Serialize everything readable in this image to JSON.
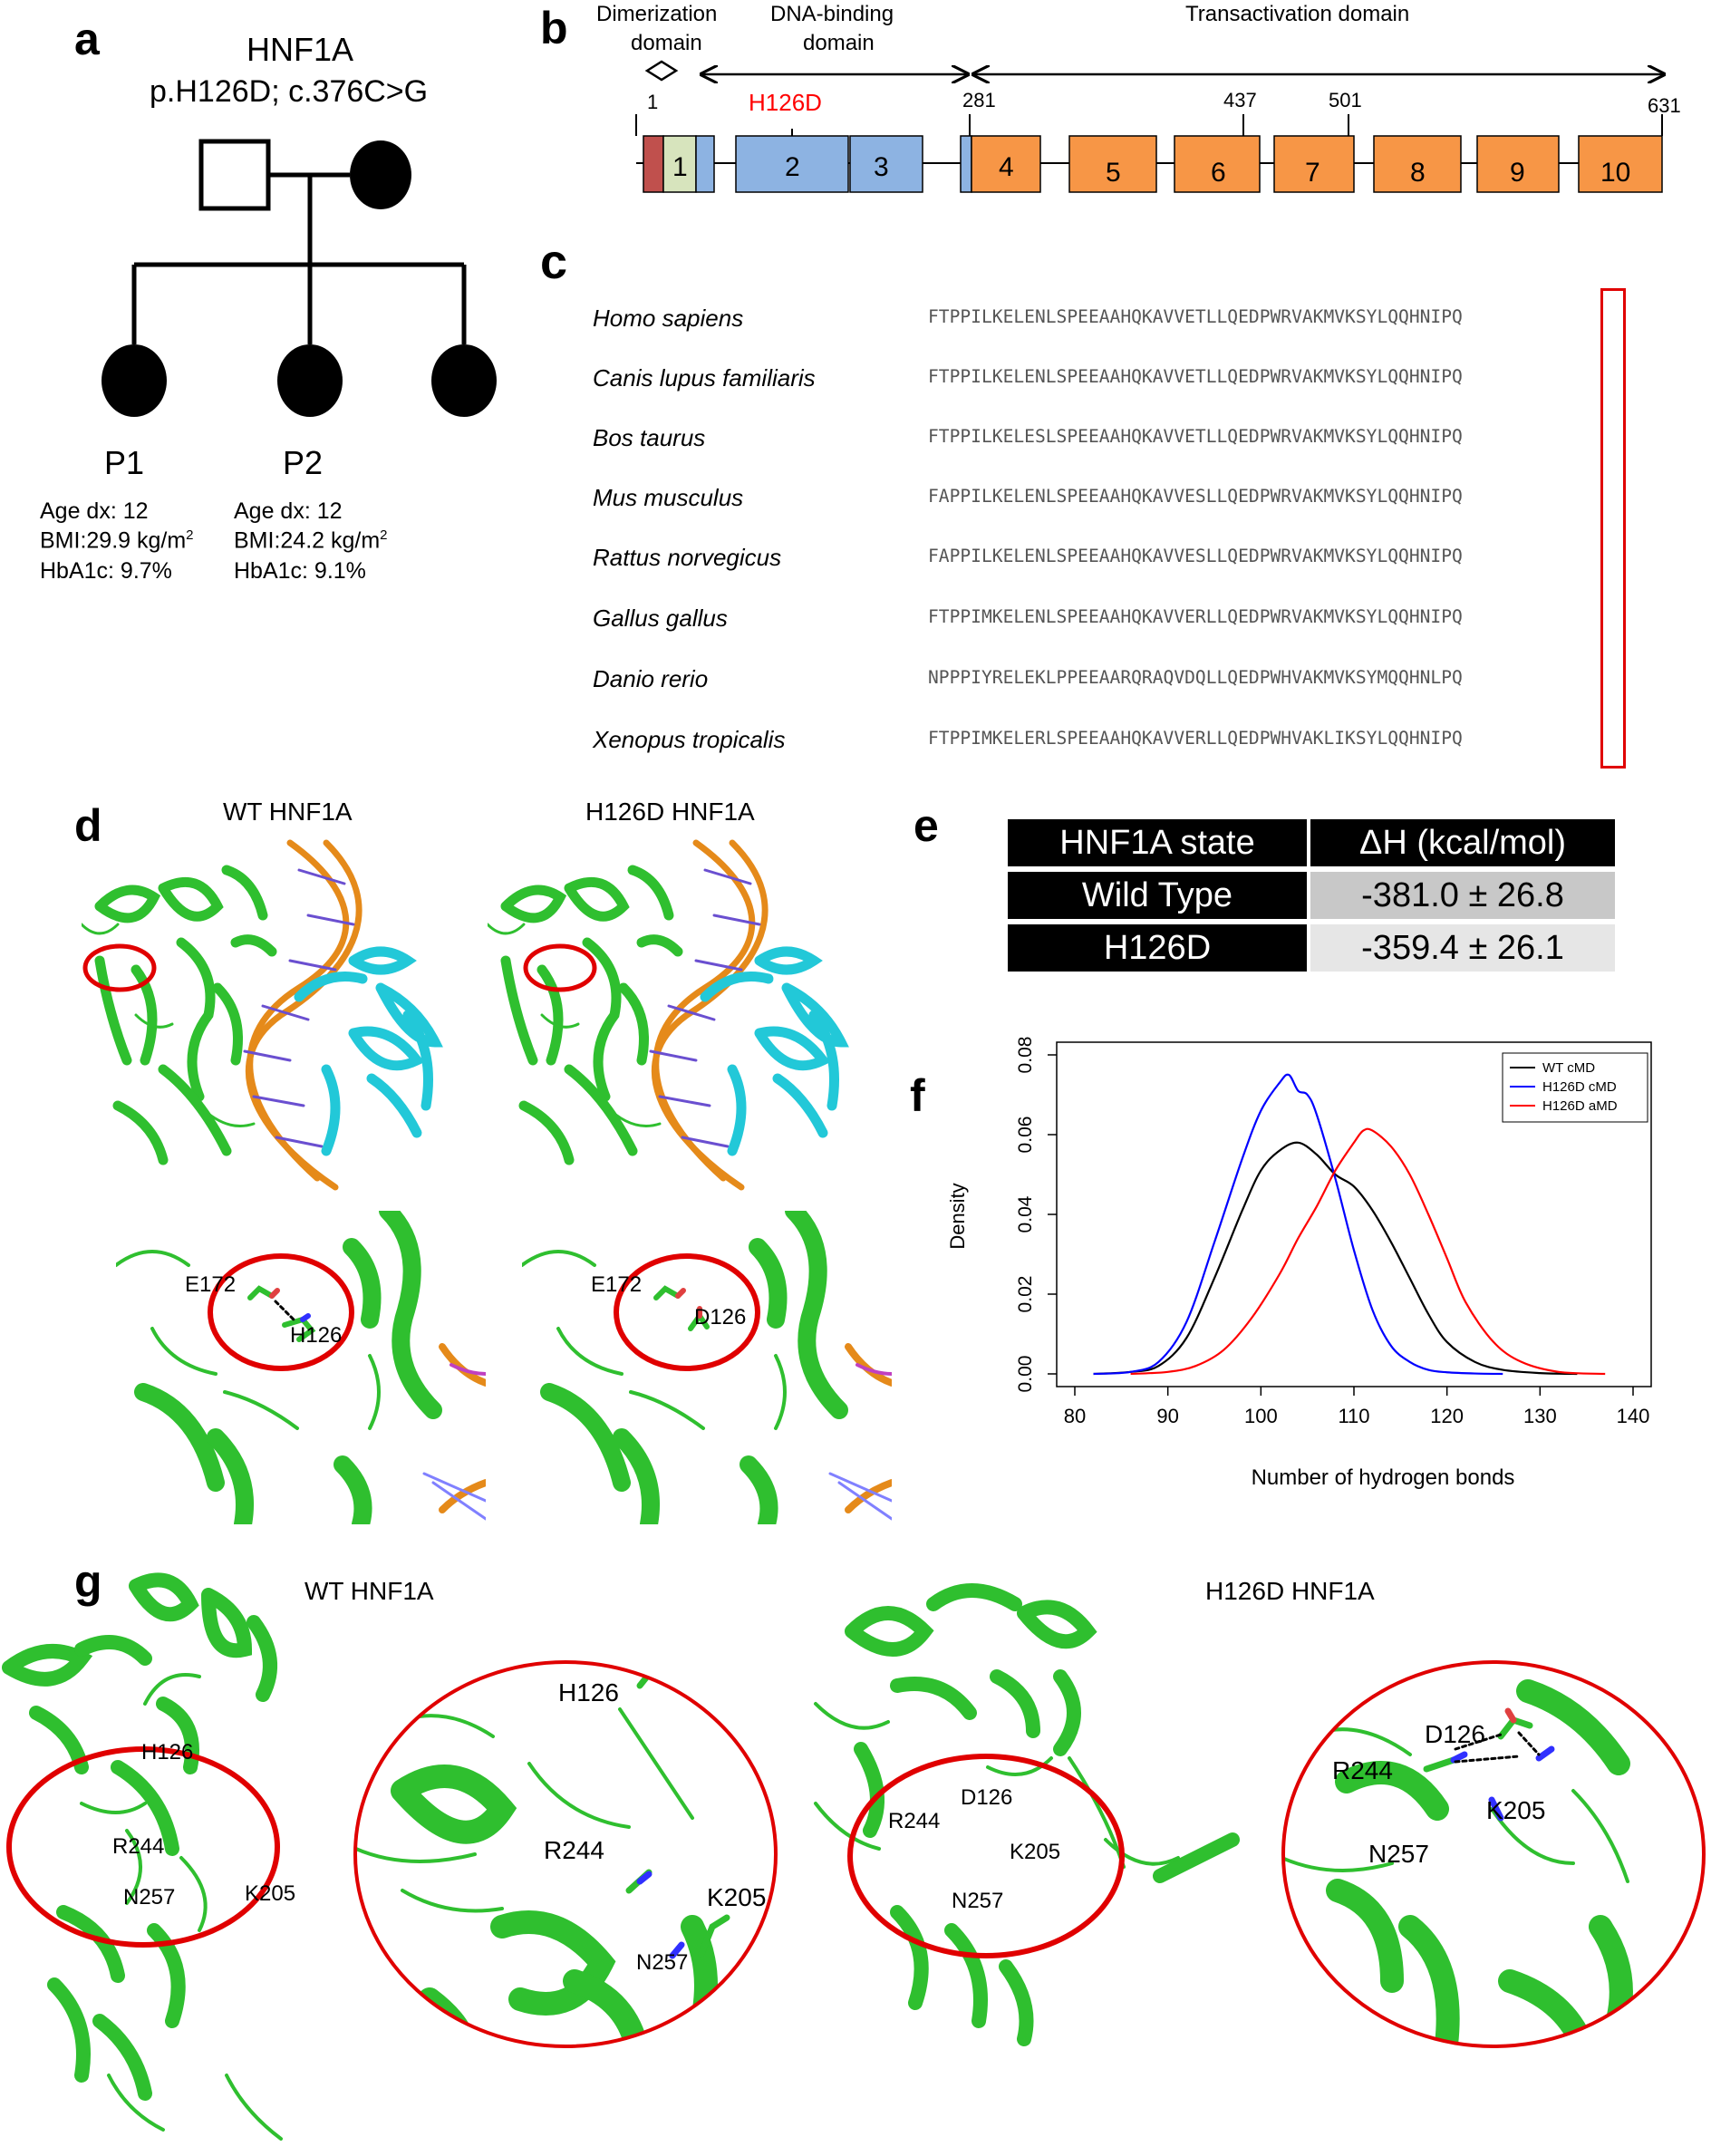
{
  "panels": {
    "a": "a",
    "b": "b",
    "c": "c",
    "d": "d",
    "e": "e",
    "f": "f",
    "g": "g"
  },
  "pedigree": {
    "gene": "HNF1A",
    "variant": "p.H126D; c.376C>G",
    "p1": {
      "label": "P1",
      "age": "Age dx: 12",
      "bmi": "BMI:29.9 kg/m",
      "bmi_sup": "2",
      "hba1c": "HbA1c: 9.7%"
    },
    "p2": {
      "label": "P2",
      "age": "Age dx: 12",
      "bmi": "BMI:24.2 kg/m",
      "bmi_sup": "2",
      "hba1c": "HbA1c: 9.1%"
    }
  },
  "domains": {
    "dimerization": "Dimerization domain",
    "dimerization_l1": "Dimerization",
    "dimerization_l2": "domain",
    "dna_binding_l1": "DNA-binding",
    "dna_binding_l2": "domain",
    "transactivation": "Transactivation domain",
    "mutation": "H126D",
    "positions": [
      "1",
      "281",
      "437",
      "501",
      "631"
    ],
    "exons": [
      "1",
      "2",
      "3",
      "4",
      "5",
      "6",
      "7",
      "8",
      "9",
      "10"
    ],
    "colors": {
      "dimer_red": "#c0504d",
      "dimer_green": "#d7e4bd",
      "dna_blue": "#8db3e2",
      "trans_orange": "#f79646",
      "mutation": "#ff0000"
    }
  },
  "alignment": {
    "rows": [
      {
        "species": "Homo sapiens",
        "seq": "FTPPILKELENLSPEEAAHQKAVVETLLQEDPWRVAKMVKSYLQQHNIPQ"
      },
      {
        "species": "Canis lupus familiaris",
        "seq": "FTPPILKELENLSPEEAAHQKAVVETLLQEDPWRVAKMVKSYLQQHNIPQ"
      },
      {
        "species": "Bos taurus",
        "seq": "FTPPILKELESLSPEEAAHQKAVVETLLQEDPWRVAKMVKSYLQQHNIPQ"
      },
      {
        "species": "Mus musculus",
        "seq": "FAPPILKELENLSPEEAAHQKAVVESLLQEDPWRVAKMVKSYLQQHNIPQ"
      },
      {
        "species": "Rattus norvegicus",
        "seq": "FAPPILKELENLSPEEAAHQKAVVESLLQEDPWRVAKMVKSYLQQHNIPQ"
      },
      {
        "species": "Gallus gallus",
        "seq": "FTPPIMKELENLSPEEAAHQKAVVERLLQEDPWRVAKMVKSYLQQHNIPQ"
      },
      {
        "species": "Danio rerio",
        "seq": "NPPPIYRELEKLPPEEAARQRAQVDQLLQEDPWHVAKMVKSYMQQHNLPQ"
      },
      {
        "species": "Xenopus tropicalis",
        "seq": "FTPPIMKELERLSPEEAAHQKAVVERLLQEDPWHVAKLIKSYLQQHNIPQ"
      }
    ]
  },
  "structures": {
    "wt_title": "WT HNF1A",
    "mut_title": "H126D HNF1A",
    "d_labels": {
      "e172": "E172",
      "h126": "H126",
      "d126": "D126"
    },
    "g_labels": {
      "h126": "H126",
      "d126": "D126",
      "r244": "R244",
      "k205": "K205",
      "n257": "N257"
    },
    "colors": {
      "protein": "#2fbf2f",
      "dna": "#e58a1a",
      "partner": "#22c8d8",
      "highlight": "#e00000"
    }
  },
  "table": {
    "headers": [
      "HNF1A state",
      "ΔH (kcal/mol)"
    ],
    "rows": [
      {
        "state": "Wild Type",
        "value": "-381.0 ± 26.8"
      },
      {
        "state": "H126D",
        "value": "-359.4 ± 26.1"
      }
    ]
  },
  "chart_data": {
    "type": "line",
    "title": "",
    "xlabel": "Number of hydrogen bonds",
    "ylabel": "Density",
    "xlim": [
      80,
      140
    ],
    "ylim": [
      0,
      0.08
    ],
    "xticks": [
      "80",
      "90",
      "100",
      "110",
      "120",
      "130",
      "140"
    ],
    "yticks": [
      "0.00",
      "0.02",
      "0.04",
      "0.06",
      "0.08"
    ],
    "legend_position": "top-right",
    "series": [
      {
        "name": "WT cMD",
        "color": "#000000",
        "x": [
          82,
          86,
          89,
          92,
          95,
          98,
          100,
          102,
          104,
          106,
          108,
          110,
          112,
          114,
          116,
          118,
          120,
          123,
          126,
          130,
          134
        ],
        "y": [
          0.0,
          0.0005,
          0.002,
          0.009,
          0.024,
          0.041,
          0.051,
          0.056,
          0.058,
          0.055,
          0.05,
          0.047,
          0.041,
          0.033,
          0.024,
          0.015,
          0.008,
          0.003,
          0.001,
          0.0002,
          0.0
        ]
      },
      {
        "name": "H126D cMD",
        "color": "#0000ff",
        "x": [
          82,
          86,
          89,
          92,
          95,
          98,
          100,
          102,
          103,
          104,
          105,
          106,
          108,
          110,
          112,
          114,
          116,
          118,
          120,
          123,
          126
        ],
        "y": [
          0.0,
          0.0005,
          0.003,
          0.013,
          0.033,
          0.054,
          0.066,
          0.073,
          0.075,
          0.071,
          0.07,
          0.065,
          0.049,
          0.031,
          0.016,
          0.007,
          0.003,
          0.001,
          0.0004,
          0.0001,
          0.0
        ]
      },
      {
        "name": "H126D aMD",
        "color": "#ff0000",
        "x": [
          86,
          90,
          93,
          96,
          99,
          102,
          104,
          106,
          108,
          110,
          111,
          112,
          114,
          116,
          118,
          120,
          122,
          125,
          128,
          132,
          137
        ],
        "y": [
          0.0,
          0.0005,
          0.002,
          0.006,
          0.014,
          0.025,
          0.034,
          0.042,
          0.051,
          0.058,
          0.061,
          0.061,
          0.057,
          0.05,
          0.04,
          0.029,
          0.018,
          0.008,
          0.003,
          0.0005,
          0.0
        ]
      }
    ]
  }
}
